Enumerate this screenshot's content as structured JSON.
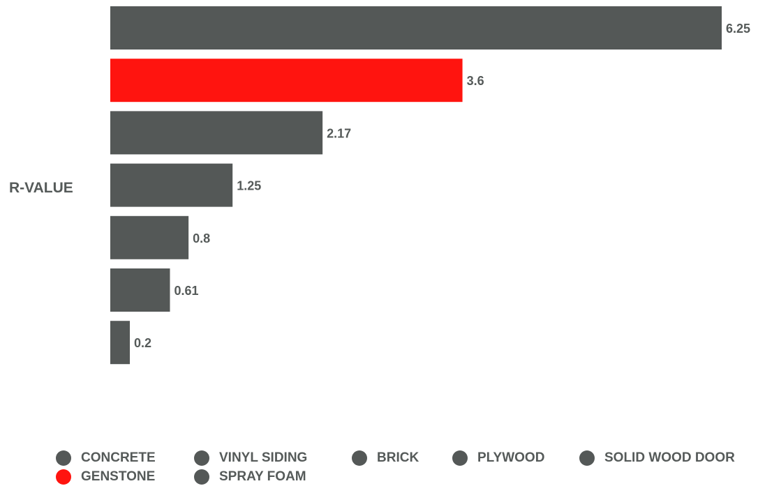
{
  "chart_data": {
    "type": "bar",
    "orientation": "horizontal",
    "ylabel": "R-VALUE",
    "categories": [
      "GENSTONE",
      "SPRAY FOAM",
      "CONCRETE",
      "VINYL SIDING",
      "BRICK",
      "PLYWOOD",
      "SOLID WOOD DOOR"
    ],
    "bars": [
      {
        "category": "SPRAY FOAM",
        "value": 6.25,
        "label": "6.25",
        "color": "#545857"
      },
      {
        "category": "GENSTONE",
        "value": 3.6,
        "label": "3.6",
        "color": "#ff140f"
      },
      {
        "category": "SOLID WOOD DOOR",
        "value": 2.17,
        "label": "2.17",
        "color": "#545857"
      },
      {
        "category": "PLYWOOD",
        "value": 1.25,
        "label": "1.25",
        "color": "#545857"
      },
      {
        "category": "BRICK",
        "value": 0.8,
        "label": "0.8",
        "color": "#545857"
      },
      {
        "category": "VINYL SIDING",
        "value": 0.61,
        "label": "0.61",
        "color": "#545857"
      },
      {
        "category": "CONCRETE",
        "value": 0.2,
        "label": "0.2",
        "color": "#545857"
      }
    ],
    "xlim": [
      0,
      6.25
    ],
    "grid": false,
    "legend_placement": "bottom",
    "legend": {
      "rows": [
        [
          {
            "label": "CONCRETE",
            "color": "#545857"
          },
          {
            "label": "VINYL SIDING",
            "color": "#545857"
          },
          {
            "label": "BRICK",
            "color": "#545857"
          },
          {
            "label": "PLYWOOD",
            "color": "#545857"
          },
          {
            "label": "SOLID WOOD DOOR",
            "color": "#545857"
          }
        ],
        [
          {
            "label": "GENSTONE",
            "color": "#ff140f"
          },
          {
            "label": "SPRAY FOAM",
            "color": "#545857"
          }
        ]
      ]
    }
  }
}
